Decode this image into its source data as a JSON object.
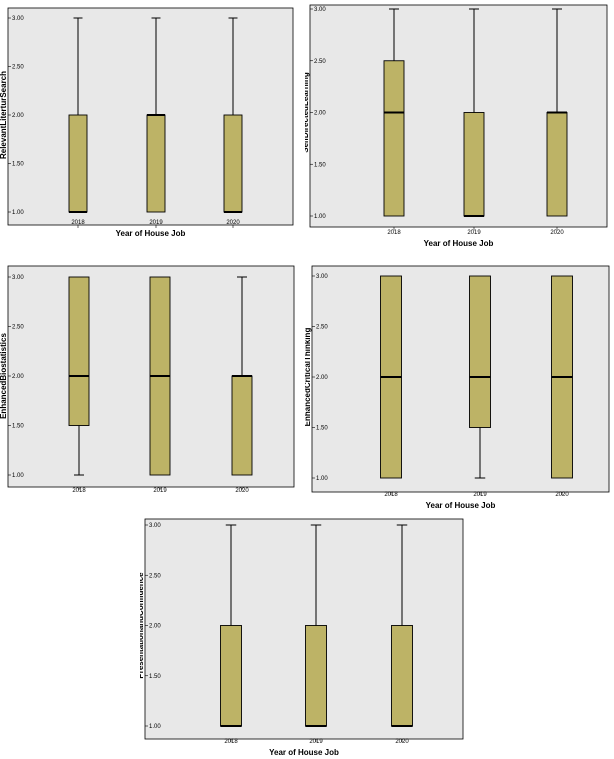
{
  "chart_data": [
    {
      "type": "boxplot",
      "xlabel": "Year of House Job",
      "ylabel": "RelevantLiterturSearch",
      "ylim": [
        1.0,
        3.0
      ],
      "yticks": [
        "1.00",
        "1.50",
        "2.00",
        "2.50",
        "3.00"
      ],
      "categories": [
        "2018",
        "2019",
        "2020"
      ],
      "boxes": [
        {
          "min": 1.0,
          "q1": 1.0,
          "median": 1.0,
          "q3": 2.0,
          "max": 3.0
        },
        {
          "min": 1.0,
          "q1": 1.0,
          "median": 2.0,
          "q3": 2.0,
          "max": 3.0
        },
        {
          "min": 1.0,
          "q1": 1.0,
          "median": 1.0,
          "q3": 2.0,
          "max": 3.0
        }
      ],
      "box_color": "#bdb366",
      "plot_bg": "#e8e8e8"
    },
    {
      "type": "boxplot",
      "xlabel": "Year of House Job",
      "ylabel": "SelfDirectedLearning",
      "ylim": [
        1.0,
        3.0
      ],
      "yticks": [
        "1.00",
        "1.50",
        "2.00",
        "2.50",
        "3.00"
      ],
      "categories": [
        "2018",
        "2019",
        "2020"
      ],
      "boxes": [
        {
          "min": 1.0,
          "q1": 1.0,
          "median": 2.0,
          "q3": 2.5,
          "max": 3.0
        },
        {
          "min": 1.0,
          "q1": 1.0,
          "median": 1.0,
          "q3": 2.0,
          "max": 3.0
        },
        {
          "min": 1.0,
          "q1": 1.0,
          "median": 2.0,
          "q3": 2.0,
          "max": 3.0
        }
      ],
      "box_color": "#bdb366",
      "plot_bg": "#e8e8e8"
    },
    {
      "type": "boxplot",
      "xlabel": "",
      "ylabel": "EnhancedBiostatistics",
      "ylim": [
        1.0,
        3.0
      ],
      "yticks": [
        "1.00",
        "1.50",
        "2.00",
        "2.50",
        "3.00"
      ],
      "categories": [
        "2018",
        "2019",
        "2020"
      ],
      "boxes": [
        {
          "min": 1.0,
          "q1": 1.5,
          "median": 2.0,
          "q3": 3.0,
          "max": 3.0
        },
        {
          "min": 1.0,
          "q1": 1.0,
          "median": 2.0,
          "q3": 3.0,
          "max": 3.0
        },
        {
          "min": 1.0,
          "q1": 1.0,
          "median": 2.0,
          "q3": 2.0,
          "max": 3.0
        }
      ],
      "box_color": "#bdb366",
      "plot_bg": "#e8e8e8"
    },
    {
      "type": "boxplot",
      "xlabel": "Year of House Job",
      "ylabel": "EnhancedCriticalThinking",
      "ylim": [
        1.0,
        3.0
      ],
      "yticks": [
        "1.00",
        "1.50",
        "2.00",
        "2.50",
        "3.00"
      ],
      "categories": [
        "2018",
        "2019",
        "2020"
      ],
      "boxes": [
        {
          "min": 1.0,
          "q1": 1.0,
          "median": 2.0,
          "q3": 3.0,
          "max": 3.0
        },
        {
          "min": 1.0,
          "q1": 1.5,
          "median": 2.0,
          "q3": 3.0,
          "max": 3.0
        },
        {
          "min": 1.0,
          "q1": 1.0,
          "median": 2.0,
          "q3": 3.0,
          "max": 3.0
        }
      ],
      "box_color": "#bdb366",
      "plot_bg": "#e8e8e8"
    },
    {
      "type": "boxplot",
      "xlabel": "Year of House Job",
      "ylabel": "PresentationandConfidence",
      "ylim": [
        1.0,
        3.0
      ],
      "yticks": [
        "1.00",
        "1.50",
        "2.00",
        "2.50",
        "3.00"
      ],
      "categories": [
        "2018",
        "2019",
        "2020"
      ],
      "boxes": [
        {
          "min": 1.0,
          "q1": 1.0,
          "median": 1.0,
          "q3": 2.0,
          "max": 3.0
        },
        {
          "min": 1.0,
          "q1": 1.0,
          "median": 1.0,
          "q3": 2.0,
          "max": 3.0
        },
        {
          "min": 1.0,
          "q1": 1.0,
          "median": 1.0,
          "q3": 2.0,
          "max": 3.0
        }
      ],
      "box_color": "#bdb366",
      "plot_bg": "#e8e8e8"
    }
  ]
}
